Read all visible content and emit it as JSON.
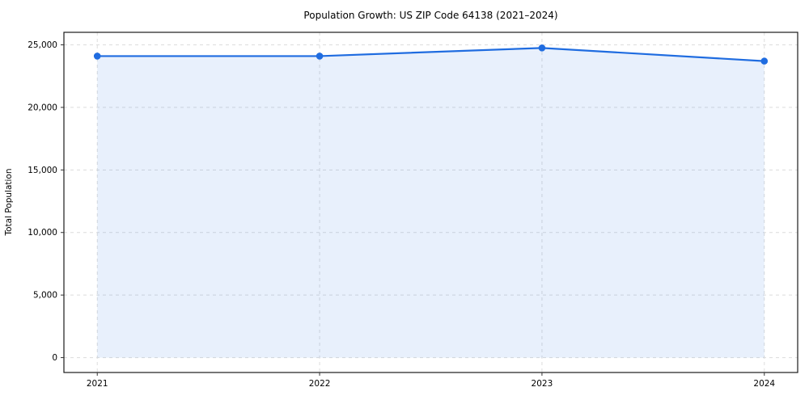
{
  "figure": {
    "title": "Population Growth: US ZIP Code 64138 (2021–2024)",
    "background_color": "#ffffff"
  },
  "chart_data": {
    "type": "area",
    "title": "Population Growth: US ZIP Code 64138 (2021–2024)",
    "xlabel": "",
    "ylabel": "Total Population",
    "x": [
      2021,
      2022,
      2023,
      2024
    ],
    "series": [
      {
        "name": "Total Population",
        "values": [
          24100,
          24100,
          24750,
          23700
        ]
      }
    ],
    "xlim": [
      2020.85,
      2024.15
    ],
    "ylim": [
      -1190,
      26000
    ],
    "xticks": [
      2021,
      2022,
      2023,
      2024
    ],
    "xticklabels": [
      "2021",
      "2022",
      "2023",
      "2024"
    ],
    "yticks": [
      0,
      5000,
      10000,
      15000,
      20000,
      25000
    ],
    "yticklabels": [
      "0",
      "5,000",
      "10,000",
      "15,000",
      "20,000",
      "25,000"
    ],
    "grid": true,
    "grid_style": "dashed",
    "legend": "none",
    "line_color": "#1f6ce0",
    "marker_color": "#1f6ce0",
    "fill_color": "#1f6ce0",
    "fill_opacity": 0.1,
    "grid_color": "#dcdcdc",
    "spine_color": "#1a1a1a",
    "tick_color": "#333333",
    "text_color": "#000000"
  }
}
